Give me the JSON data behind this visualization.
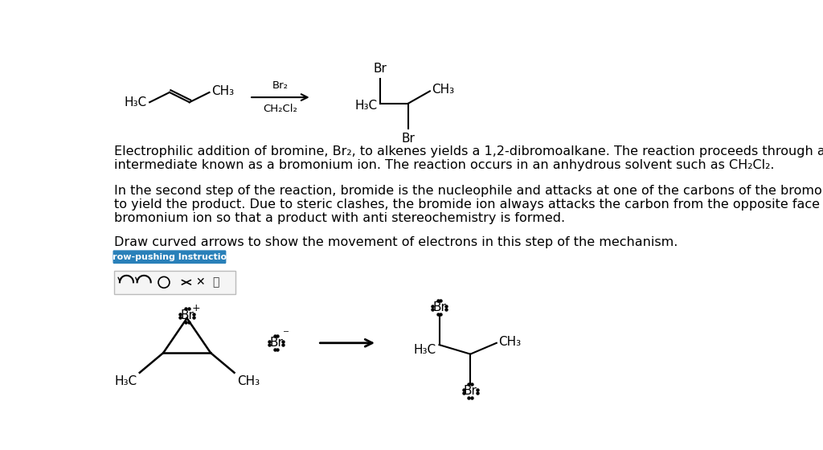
{
  "bg_color": "#ffffff",
  "para1_line1": "Electrophilic addition of bromine, Br₂, to alkenes yields a 1,2-dibromoalkane. The reaction proceeds through a cyclic",
  "para1_line2": "intermediate known as a bromonium ion. The reaction occurs in an anhydrous solvent such as CH₂Cl₂.",
  "para2_line1": "In the second step of the reaction, bromide is the nucleophile and attacks at one of the carbons of the bromonium ion",
  "para2_line2": "to yield the product. Due to steric clashes, the bromide ion always attacks the carbon from the opposite face of the",
  "para2_line3": "bromonium ion so that a product with anti stereochemistry is formed.",
  "para3": "Draw curved arrows to show the movement of electrons in this step of the mechanism.",
  "button_text": "Arrow-pushing Instructions",
  "button_color": "#2980b9",
  "button_text_color": "#ffffff",
  "text_fontsize": 11.5,
  "chem_fontsize": 11
}
